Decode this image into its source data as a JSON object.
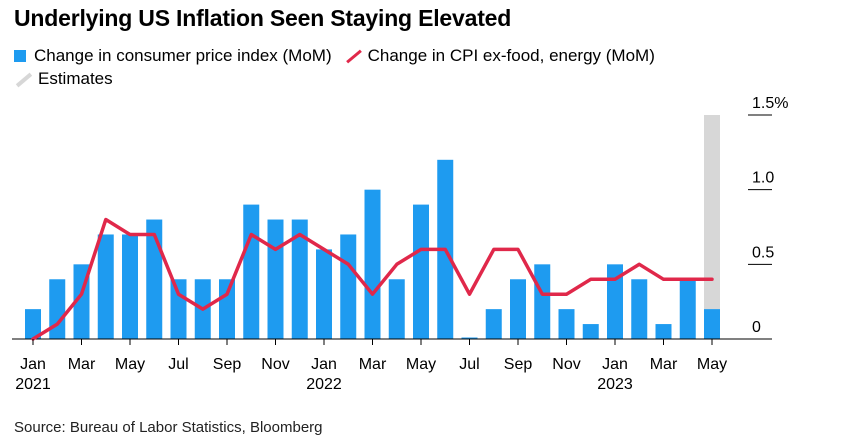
{
  "title": "Underlying US Inflation Seen Staying Elevated",
  "legend": {
    "cpi": "Change in consumer price index (MoM)",
    "core": "Change in CPI ex-food, energy (MoM)",
    "estimates": "Estimates"
  },
  "source": "Source: Bureau of Labor Statistics, Bloomberg",
  "colors": {
    "bar": "#1e9bf0",
    "line": "#e0284a",
    "estimate": "#d7d7d7"
  },
  "chart_data": {
    "type": "bar",
    "title": "Underlying US Inflation Seen Staying Elevated",
    "xlabel": "",
    "ylabel": "",
    "ylim": [
      0,
      1.5
    ],
    "y_ticks": [
      {
        "value": 0,
        "label": "0"
      },
      {
        "value": 0.5,
        "label": "0.5"
      },
      {
        "value": 1.0,
        "label": "1.0"
      },
      {
        "value": 1.5,
        "label": "1.5%"
      }
    ],
    "categories": [
      "Jan 2021",
      "Feb 2021",
      "Mar 2021",
      "Apr 2021",
      "May 2021",
      "Jun 2021",
      "Jul 2021",
      "Aug 2021",
      "Sep 2021",
      "Oct 2021",
      "Nov 2021",
      "Dec 2021",
      "Jan 2022",
      "Feb 2022",
      "Mar 2022",
      "Apr 2022",
      "May 2022",
      "Jun 2022",
      "Jul 2022",
      "Aug 2022",
      "Sep 2022",
      "Oct 2022",
      "Nov 2022",
      "Dec 2022",
      "Jan 2023",
      "Feb 2023",
      "Mar 2023",
      "Apr 2023",
      "May 2023"
    ],
    "x_tick_labels": [
      {
        "index": 0,
        "month": "Jan",
        "year": "2021"
      },
      {
        "index": 2,
        "month": "Mar"
      },
      {
        "index": 4,
        "month": "May"
      },
      {
        "index": 6,
        "month": "Jul"
      },
      {
        "index": 8,
        "month": "Sep"
      },
      {
        "index": 10,
        "month": "Nov"
      },
      {
        "index": 12,
        "month": "Jan",
        "year": "2022"
      },
      {
        "index": 14,
        "month": "Mar"
      },
      {
        "index": 16,
        "month": "May"
      },
      {
        "index": 18,
        "month": "Jul"
      },
      {
        "index": 20,
        "month": "Sep"
      },
      {
        "index": 22,
        "month": "Nov"
      },
      {
        "index": 24,
        "month": "Jan",
        "year": "2023"
      },
      {
        "index": 26,
        "month": "Mar"
      },
      {
        "index": 28,
        "month": "May"
      }
    ],
    "series": [
      {
        "name": "Change in consumer price index (MoM)",
        "kind": "bar",
        "values": [
          0.2,
          0.4,
          0.5,
          0.7,
          0.7,
          0.8,
          0.4,
          0.4,
          0.4,
          0.9,
          0.8,
          0.8,
          0.6,
          0.7,
          1.0,
          0.4,
          0.9,
          1.2,
          0.0,
          0.2,
          0.4,
          0.5,
          0.2,
          0.1,
          0.5,
          0.4,
          0.1,
          0.4,
          0.2
        ]
      },
      {
        "name": "Change in CPI ex-food, energy (MoM)",
        "kind": "line",
        "values": [
          0.0,
          0.1,
          0.3,
          0.8,
          0.7,
          0.7,
          0.3,
          0.2,
          0.3,
          0.7,
          0.6,
          0.7,
          0.6,
          0.5,
          0.3,
          0.5,
          0.6,
          0.6,
          0.3,
          0.6,
          0.6,
          0.3,
          0.3,
          0.4,
          0.4,
          0.5,
          0.4,
          0.4,
          0.4
        ]
      }
    ],
    "estimate_index": 28,
    "estimate_value": 1.5
  }
}
